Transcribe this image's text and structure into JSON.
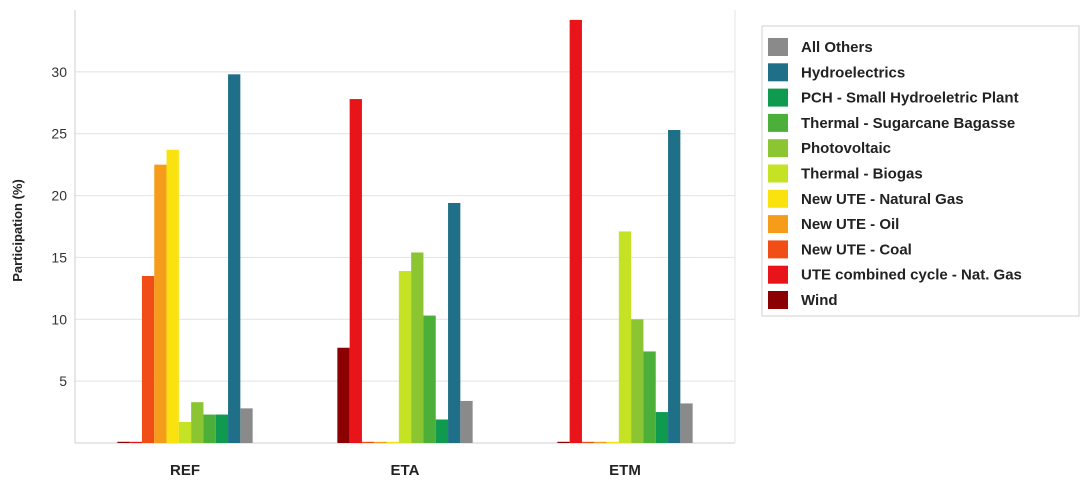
{
  "chart_data": {
    "type": "bar",
    "title": "",
    "xlabel": "",
    "ylabel": "Participation (%)",
    "ylim": [
      0,
      35
    ],
    "yticks": [
      5,
      10,
      15,
      20,
      25,
      30
    ],
    "grid": true,
    "legend_position": "right",
    "categories": [
      "REF",
      "ETA",
      "ETM"
    ],
    "series": [
      {
        "name": "Wind",
        "color": "#8b0000",
        "values": [
          0,
          7.7,
          0
        ]
      },
      {
        "name": "UTE combined cycle - Nat. Gas",
        "color": "#e8141a",
        "values": [
          0,
          27.8,
          34.2
        ]
      },
      {
        "name": "New UTE - Coal",
        "color": "#f04e16",
        "values": [
          13.5,
          0,
          0
        ]
      },
      {
        "name": "New UTE - Oil",
        "color": "#f59d1b",
        "values": [
          22.5,
          0,
          0
        ]
      },
      {
        "name": "New UTE - Natural Gas",
        "color": "#fae20e",
        "values": [
          23.7,
          0,
          0
        ]
      },
      {
        "name": "Thermal - Biogas",
        "color": "#c5e224",
        "values": [
          1.7,
          13.9,
          17.1
        ]
      },
      {
        "name": "Photovoltaic",
        "color": "#8cc532",
        "values": [
          3.3,
          15.4,
          10.0
        ]
      },
      {
        "name": "Thermal - Sugarcane Bagasse",
        "color": "#4caf3a",
        "values": [
          2.3,
          10.3,
          7.4
        ]
      },
      {
        "name": "PCH - Small Hydroeletric Plant",
        "color": "#0f9a4f",
        "values": [
          2.3,
          1.9,
          2.5
        ]
      },
      {
        "name": "Hydroelectrics",
        "color": "#1e6f87",
        "values": [
          29.8,
          19.4,
          25.3
        ]
      },
      {
        "name": "All Others",
        "color": "#8a8a8a",
        "values": [
          2.8,
          3.4,
          3.2
        ]
      }
    ],
    "legend_order": [
      "All Others",
      "Hydroelectrics",
      "PCH - Small Hydroeletric Plant",
      "Thermal - Sugarcane Bagasse",
      "Photovoltaic",
      "Thermal - Biogas",
      "New UTE - Natural Gas",
      "New UTE - Oil",
      "New UTE - Coal",
      "UTE combined cycle - Nat. Gas",
      "Wind"
    ]
  }
}
